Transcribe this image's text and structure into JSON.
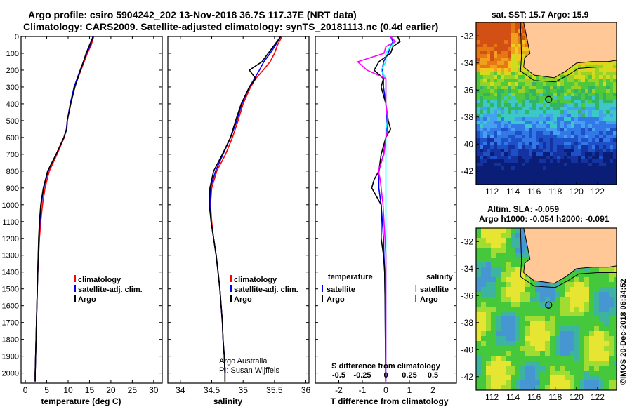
{
  "title_line1": "Argo profile: csiro 5904242_202 13-Nov-2018 36.7S 117.37E (NRT data)",
  "title_line2": "Climatology: CARS2009. Satellite-adjusted climatology: synTS_20181113.nc (0.4d earlier)",
  "map_title_sst": "sat. SST: 15.7 Argo: 15.9",
  "map_title_sla1": "Altim. SLA: -0.059",
  "map_title_sla2": "Argo h1000: -0.054 h2000: -0.091",
  "watermark": "©IMOS 20-Dec-2018 06:34:52",
  "credit_line1": "Argo Australia",
  "credit_line2": "PI: Susan Wijffels",
  "colors": {
    "climatology": "#ff0000",
    "satellite": "#0000ff",
    "argo": "#000000",
    "sat_salinity": "#00ffff",
    "argo_salinity": "#ff00ff",
    "land": "#ffc896"
  },
  "depth_ticks": [
    "0",
    "100",
    "200",
    "300",
    "400",
    "500",
    "600",
    "700",
    "800",
    "900",
    "1000",
    "1100",
    "1200",
    "1300",
    "1400",
    "1500",
    "1600",
    "1700",
    "1800",
    "1900",
    "2000"
  ],
  "chart_data": [
    {
      "type": "line",
      "xlabel": "temperature (deg C)",
      "xticks": [
        "0",
        "5",
        "10",
        "15",
        "20",
        "25",
        "30"
      ],
      "xlim": [
        -1,
        32
      ],
      "ylim": [
        2060,
        0
      ],
      "legend": [
        "climatology",
        "satellite-adj. clim.",
        "Argo"
      ],
      "depth": [
        0,
        50,
        100,
        200,
        300,
        400,
        500,
        550,
        600,
        700,
        800,
        900,
        1000,
        1100,
        1200,
        1300,
        1400,
        1500,
        1600,
        1700,
        1800,
        1900,
        2000,
        2050
      ],
      "series": [
        {
          "name": "climatology",
          "values": [
            16.0,
            15.4,
            14.5,
            13.0,
            11.5,
            10.6,
            9.8,
            9.6,
            9.1,
            7.4,
            5.6,
            4.6,
            4.0,
            3.6,
            3.3,
            3.1,
            2.9,
            2.8,
            2.7,
            2.6,
            2.5,
            2.4,
            2.3,
            2.3
          ]
        },
        {
          "name": "satellite-adj. clim.",
          "values": [
            15.8,
            15.2,
            14.3,
            12.8,
            11.4,
            10.5,
            9.8,
            9.6,
            9.0,
            7.2,
            5.3,
            4.3,
            3.7,
            3.4,
            3.2,
            3.0,
            2.9,
            2.8,
            2.7,
            2.6,
            2.5,
            2.4,
            2.3,
            2.3
          ]
        },
        {
          "name": "Argo",
          "values": [
            15.9,
            15.0,
            14.2,
            12.9,
            11.6,
            10.6,
            9.8,
            9.7,
            9.0,
            7.2,
            5.2,
            4.2,
            3.6,
            3.3,
            3.1,
            3.0,
            2.9,
            2.8,
            2.7,
            2.6,
            2.5,
            2.4,
            2.3,
            2.3
          ]
        }
      ]
    },
    {
      "type": "line",
      "xlabel": "salinity",
      "xticks": [
        "34",
        "34.5",
        "35",
        "35.5",
        "36"
      ],
      "xlim": [
        33.8,
        36.05
      ],
      "ylim": [
        2060,
        0
      ],
      "legend": [
        "climatology",
        "satellite-adj. clim.",
        "Argo"
      ],
      "depth": [
        0,
        50,
        100,
        150,
        200,
        250,
        300,
        400,
        500,
        600,
        700,
        800,
        900,
        1000,
        1100,
        1200,
        1300,
        1400,
        1500,
        1600,
        1700,
        1800,
        1900,
        2000,
        2050
      ],
      "series": [
        {
          "name": "climatology",
          "values": [
            35.62,
            35.55,
            35.5,
            35.43,
            35.32,
            35.2,
            35.12,
            35.0,
            34.92,
            34.83,
            34.72,
            34.58,
            34.5,
            34.48,
            34.5,
            34.53,
            34.57,
            34.6,
            34.63,
            34.65,
            34.67,
            34.68,
            34.7,
            34.71,
            34.71
          ]
        },
        {
          "name": "satellite-adj. clim.",
          "values": [
            35.6,
            35.52,
            35.43,
            35.33,
            35.26,
            35.18,
            35.1,
            34.98,
            34.9,
            34.8,
            34.68,
            34.56,
            34.48,
            34.47,
            34.49,
            34.53,
            34.57,
            34.6,
            34.63,
            34.65,
            34.67,
            34.68,
            34.7,
            34.71,
            34.71
          ]
        },
        {
          "name": "Argo",
          "values": [
            35.6,
            35.5,
            35.4,
            35.3,
            35.1,
            35.2,
            35.1,
            34.97,
            34.88,
            34.8,
            34.67,
            34.53,
            34.47,
            34.46,
            34.49,
            34.53,
            34.57,
            34.6,
            34.63,
            34.65,
            34.67,
            34.68,
            34.7,
            34.71,
            34.71
          ]
        }
      ]
    },
    {
      "type": "line",
      "xlabel": "T difference from climatology",
      "xlabel_top": "S difference from climatology",
      "xticks": [
        "-2",
        "-1",
        "0",
        "1",
        "2"
      ],
      "xticks_top": [
        "-0.5",
        "-0.25",
        "0",
        "0.25",
        "0.5"
      ],
      "xlim": [
        -3,
        3
      ],
      "ylim": [
        2060,
        0
      ],
      "legend_left_title": "temperature",
      "legend_right_title": "salinity",
      "legend_left": [
        "satellite",
        "Argo"
      ],
      "legend_right": [
        "satellite",
        "Argo"
      ],
      "depth": [
        0,
        30,
        60,
        100,
        150,
        200,
        250,
        300,
        400,
        500,
        550,
        600,
        700,
        800,
        850,
        900,
        950,
        1000,
        1100,
        1200,
        1300,
        1400,
        1600,
        1800,
        2000,
        2050
      ],
      "series": [
        {
          "name": "temperature satellite",
          "values": [
            0.2,
            0.3,
            0.2,
            0.1,
            -0.1,
            -0.15,
            -0.1,
            -0.1,
            0.0,
            0.05,
            0.05,
            0.0,
            -0.1,
            -0.3,
            -0.3,
            -0.3,
            -0.25,
            -0.2,
            -0.15,
            -0.1,
            -0.08,
            -0.05,
            -0.03,
            -0.02,
            -0.01,
            -0.01
          ]
        },
        {
          "name": "temperature Argo",
          "values": [
            0.5,
            0.6,
            0.3,
            0.2,
            -0.3,
            -0.5,
            -0.1,
            -0.2,
            0.0,
            0.1,
            0.2,
            0.0,
            -0.2,
            -0.3,
            -0.5,
            -0.6,
            -0.4,
            -0.2,
            -0.2,
            -0.2,
            -0.1,
            -0.05,
            -0.03,
            -0.02,
            -0.01,
            -0.01
          ]
        },
        {
          "name": "salinity satellite",
          "values": [
            0.05,
            0.1,
            0.05,
            0.0,
            0.0,
            -0.05,
            0.0,
            0.0,
            0.0,
            0.02,
            0.0,
            0.0,
            0.0,
            0.0,
            0.0,
            0.0,
            0.0,
            0.0,
            0.0,
            0.0,
            0.0,
            0.0,
            0.0,
            0.0,
            0.0,
            0.0
          ]
        },
        {
          "name": "salinity Argo",
          "values": [
            0.05,
            0.1,
            0.0,
            -0.02,
            -0.3,
            -0.2,
            0.0,
            0.0,
            0.0,
            0.02,
            0.02,
            0.0,
            -0.02,
            -0.08,
            -0.06,
            -0.05,
            -0.04,
            -0.03,
            -0.02,
            -0.01,
            0.0,
            0.0,
            0.0,
            0.0,
            0.0,
            0.0
          ]
        }
      ]
    },
    {
      "type": "heatmap",
      "title": "sat. SST: 15.7 Argo: 15.9",
      "xticks": [
        "112",
        "114",
        "116",
        "118",
        "120",
        "122"
      ],
      "yticks": [
        "-32",
        "-34",
        "-36",
        "-38",
        "-40",
        "-42"
      ],
      "xlim": [
        110.5,
        123.8
      ],
      "ylim": [
        -43,
        -31
      ],
      "marker": [
        117.37,
        -36.7
      ]
    },
    {
      "type": "heatmap",
      "title": "Altim. SLA: -0.059 / Argo h1000: -0.054 h2000: -0.091",
      "xticks": [
        "112",
        "114",
        "116",
        "118",
        "120",
        "122"
      ],
      "yticks": [
        "-32",
        "-34",
        "-36",
        "-38",
        "-40",
        "-42"
      ],
      "xlim": [
        110.5,
        123.8
      ],
      "ylim": [
        -43,
        -31
      ],
      "marker": [
        117.37,
        -36.7
      ]
    }
  ]
}
